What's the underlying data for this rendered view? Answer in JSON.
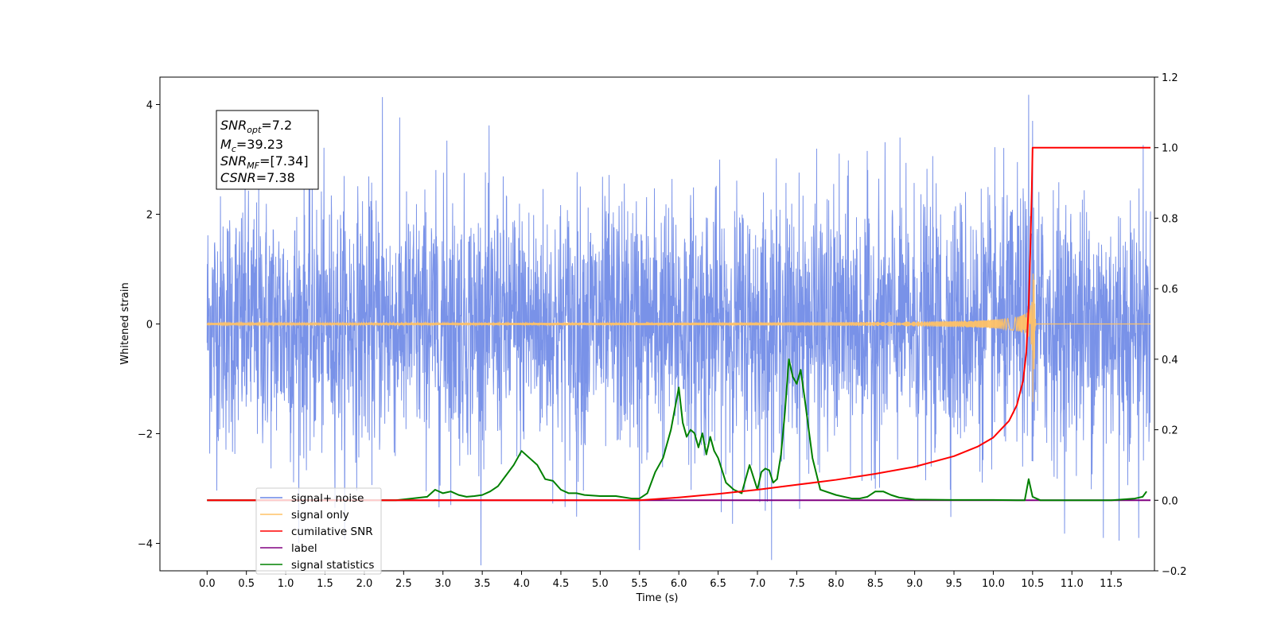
{
  "chart_data": {
    "type": "line",
    "xlabel": "Time (s)",
    "ylabel": "Whitened strain",
    "xlim": [
      -0.6,
      12.05
    ],
    "ylim": [
      -4.5,
      4.5
    ],
    "y2lim": [
      -0.2,
      1.2
    ],
    "x_ticks": [
      "0.0",
      "0.5",
      "1.0",
      "1.5",
      "2.0",
      "2.5",
      "3.0",
      "3.5",
      "4.0",
      "4.5",
      "5.0",
      "5.5",
      "6.0",
      "6.5",
      "7.0",
      "7.5",
      "8.0",
      "8.5",
      "9.0",
      "9.5",
      "10.0",
      "10.5",
      "11.0",
      "11.5"
    ],
    "y_ticks": [
      "4",
      "2",
      "0",
      "−2",
      "−4"
    ],
    "y2_ticks": [
      "1.2",
      "1.0",
      "0.8",
      "0.6",
      "0.4",
      "0.2",
      "0.0",
      "−0.2"
    ],
    "grid": false,
    "legend_position": "lower-left",
    "info_box": {
      "line1": {
        "sym": "SNR",
        "sub": "opt",
        "val": "=7.2"
      },
      "line2": {
        "sym": "M",
        "sub": "c",
        "val": "=39.23"
      },
      "line3": {
        "sym": "SNR",
        "sub": "MF",
        "val": "=[7.34]"
      },
      "line4": {
        "sym": "CSNR",
        "sub": "",
        "val": "=7.38"
      }
    },
    "legend": [
      {
        "label": "signal+ noise",
        "color": "#6a86e6"
      },
      {
        "label": "signal only",
        "color": "#ffc266"
      },
      {
        "label": "cumilative SNR",
        "color": "#ff0000"
      },
      {
        "label": "label",
        "color": "#800080"
      },
      {
        "label": "signal statistics",
        "color": "#008000"
      }
    ],
    "series": [
      {
        "name": "signal+ noise",
        "axis": "left",
        "color": "#6a86e6",
        "duration_s": 12.0,
        "typical_amplitude": 1.6,
        "spikes": [
          [
            2.23,
            4.12
          ],
          [
            10.45,
            4.02
          ],
          [
            10.5,
            3.75
          ],
          [
            3.05,
            3.35
          ],
          [
            5.5,
            -4.1
          ],
          [
            4.7,
            -3.5
          ],
          [
            2.95,
            -3.35
          ],
          [
            11.4,
            -3.9
          ],
          [
            11.6,
            -3.95
          ],
          [
            11.85,
            -3.9
          ],
          [
            7.1,
            -3.4
          ],
          [
            1.1,
            -2.9
          ]
        ]
      },
      {
        "name": "signal only",
        "axis": "left",
        "color": "#ffc266",
        "merger_time_s": 10.5,
        "peak_amplitude": 1.7
      },
      {
        "name": "cumilative SNR",
        "axis": "right",
        "color": "#ff0000",
        "x": [
          0,
          5.5,
          6.0,
          6.5,
          7.0,
          7.5,
          8.0,
          8.5,
          9.0,
          9.5,
          9.8,
          10.0,
          10.2,
          10.3,
          10.38,
          10.42,
          10.45,
          10.47,
          10.49,
          10.5,
          12.0
        ],
        "y": [
          0.0,
          0.0,
          0.008,
          0.018,
          0.03,
          0.044,
          0.058,
          0.075,
          0.095,
          0.125,
          0.152,
          0.178,
          0.225,
          0.27,
          0.34,
          0.42,
          0.55,
          0.7,
          0.88,
          1.0,
          1.0
        ]
      },
      {
        "name": "label",
        "axis": "right",
        "color": "#800080",
        "x": [
          0,
          12.0
        ],
        "y": [
          0.0,
          0.0
        ]
      },
      {
        "name": "signal statistics",
        "axis": "right",
        "color": "#008000",
        "x": [
          0,
          2.4,
          2.6,
          2.8,
          2.9,
          3.0,
          3.1,
          3.2,
          3.3,
          3.4,
          3.5,
          3.6,
          3.7,
          3.8,
          3.9,
          4.0,
          4.1,
          4.2,
          4.3,
          4.4,
          4.5,
          4.6,
          4.7,
          4.8,
          5.0,
          5.2,
          5.4,
          5.5,
          5.6,
          5.7,
          5.8,
          5.9,
          6.0,
          6.05,
          6.1,
          6.15,
          6.2,
          6.25,
          6.3,
          6.35,
          6.4,
          6.45,
          6.5,
          6.6,
          6.7,
          6.8,
          6.9,
          7.0,
          7.05,
          7.1,
          7.15,
          7.2,
          7.25,
          7.3,
          7.35,
          7.4,
          7.45,
          7.5,
          7.55,
          7.6,
          7.7,
          7.8,
          8.0,
          8.2,
          8.3,
          8.4,
          8.5,
          8.6,
          8.7,
          8.8,
          9.0,
          9.5,
          10.0,
          10.3,
          10.4,
          10.45,
          10.5,
          10.6,
          11.0,
          11.5,
          11.8,
          11.9,
          11.95
        ],
        "y": [
          0.0,
          0.0,
          0.005,
          0.01,
          0.03,
          0.02,
          0.025,
          0.015,
          0.01,
          0.012,
          0.015,
          0.025,
          0.04,
          0.07,
          0.1,
          0.14,
          0.12,
          0.1,
          0.06,
          0.055,
          0.03,
          0.02,
          0.02,
          0.015,
          0.012,
          0.012,
          0.005,
          0.005,
          0.02,
          0.08,
          0.12,
          0.2,
          0.32,
          0.22,
          0.18,
          0.2,
          0.19,
          0.15,
          0.19,
          0.13,
          0.18,
          0.14,
          0.12,
          0.05,
          0.03,
          0.02,
          0.1,
          0.03,
          0.08,
          0.09,
          0.085,
          0.05,
          0.06,
          0.13,
          0.25,
          0.4,
          0.35,
          0.33,
          0.37,
          0.29,
          0.12,
          0.03,
          0.015,
          0.005,
          0.005,
          0.01,
          0.025,
          0.025,
          0.015,
          0.008,
          0.002,
          0.001,
          0.001,
          0.0,
          0.0,
          0.06,
          0.01,
          0.0,
          0.0,
          0.0,
          0.005,
          0.01,
          0.025
        ]
      }
    ]
  }
}
